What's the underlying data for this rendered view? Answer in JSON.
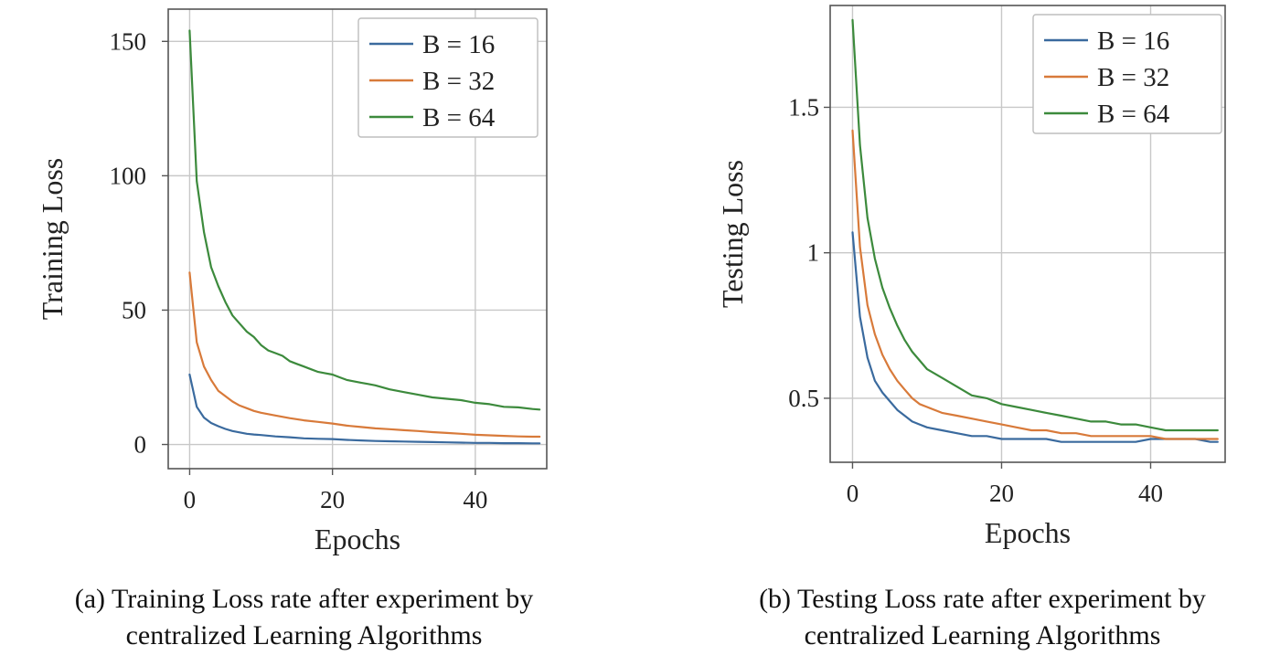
{
  "chart_data": [
    {
      "type": "line",
      "xlabel": "Epochs",
      "ylabel": "Training Loss",
      "xlim": [
        -3,
        50
      ],
      "ylim": [
        -9,
        162
      ],
      "xticks": [
        {
          "value": 0,
          "label": "0"
        },
        {
          "value": 20,
          "label": "20"
        },
        {
          "value": 40,
          "label": "40"
        }
      ],
      "yticks": [
        {
          "value": 0,
          "label": "0"
        },
        {
          "value": 50,
          "label": "50"
        },
        {
          "value": 100,
          "label": "100"
        },
        {
          "value": 150,
          "label": "150"
        }
      ],
      "grid": true,
      "legend_position": "top-right",
      "caption": [
        "(a) Training  Loss rate after experiment by",
        "centralized Learning Algorithms"
      ],
      "series": [
        {
          "name": "B = 16",
          "color": "#3a6a9e",
          "x": [
            0,
            1,
            2,
            3,
            4,
            5,
            6,
            7,
            8,
            9,
            10,
            12,
            14,
            16,
            18,
            20,
            22,
            24,
            26,
            28,
            30,
            32,
            34,
            36,
            38,
            40,
            42,
            44,
            46,
            48,
            49
          ],
          "values": [
            26,
            14,
            10,
            8,
            6.8,
            5.8,
            5,
            4.5,
            4,
            3.7,
            3.5,
            3,
            2.7,
            2.3,
            2.1,
            2,
            1.7,
            1.5,
            1.3,
            1.2,
            1.1,
            1,
            0.9,
            0.8,
            0.7,
            0.6,
            0.6,
            0.5,
            0.5,
            0.4,
            0.4
          ]
        },
        {
          "name": "B = 32",
          "color": "#d87a3a",
          "x": [
            0,
            1,
            2,
            3,
            4,
            5,
            6,
            7,
            8,
            9,
            10,
            12,
            14,
            16,
            18,
            20,
            22,
            24,
            26,
            28,
            30,
            32,
            34,
            36,
            38,
            40,
            42,
            44,
            46,
            48,
            49
          ],
          "values": [
            64,
            38,
            29,
            24,
            20,
            18,
            16,
            14.5,
            13.5,
            12.5,
            11.8,
            10.8,
            9.8,
            9,
            8.4,
            7.8,
            7,
            6.5,
            6,
            5.7,
            5.3,
            5,
            4.6,
            4.3,
            4,
            3.6,
            3.4,
            3.2,
            3,
            2.9,
            2.9
          ]
        },
        {
          "name": "B = 64",
          "color": "#3c8a3c",
          "x": [
            0,
            1,
            2,
            3,
            4,
            5,
            6,
            7,
            8,
            9,
            10,
            11,
            12,
            13,
            14,
            15,
            16,
            17,
            18,
            19,
            20,
            21,
            22,
            23,
            24,
            25,
            26,
            28,
            30,
            32,
            34,
            36,
            38,
            40,
            42,
            44,
            46,
            48,
            49
          ],
          "values": [
            154,
            98,
            79,
            66,
            59,
            53,
            48,
            45,
            42,
            40,
            37,
            35,
            34,
            33,
            31,
            30,
            29,
            28,
            27,
            26.5,
            26,
            25,
            24,
            23.5,
            23,
            22.5,
            22,
            20.5,
            19.5,
            18.5,
            17.5,
            17,
            16.5,
            15.5,
            15,
            14,
            13.8,
            13.2,
            13
          ]
        }
      ]
    },
    {
      "type": "line",
      "xlabel": "Epochs",
      "ylabel": "Testing Loss",
      "xlim": [
        -3,
        50
      ],
      "ylim": [
        0.28,
        1.85
      ],
      "xticks": [
        {
          "value": 0,
          "label": "0"
        },
        {
          "value": 20,
          "label": "20"
        },
        {
          "value": 40,
          "label": "40"
        }
      ],
      "yticks": [
        {
          "value": 0.5,
          "label": "0.5"
        },
        {
          "value": 1,
          "label": "1"
        },
        {
          "value": 1.5,
          "label": "1.5"
        }
      ],
      "grid": true,
      "legend_position": "top-right",
      "caption": [
        "(b) Testing  Loss rate after experiment by",
        "centralized Learning Algorithms"
      ],
      "series": [
        {
          "name": "B = 16",
          "color": "#3a6a9e",
          "x": [
            0,
            1,
            2,
            3,
            4,
            5,
            6,
            7,
            8,
            9,
            10,
            12,
            14,
            16,
            18,
            20,
            22,
            24,
            26,
            28,
            30,
            32,
            34,
            36,
            38,
            40,
            42,
            44,
            46,
            48,
            49
          ],
          "values": [
            1.07,
            0.78,
            0.64,
            0.56,
            0.52,
            0.49,
            0.46,
            0.44,
            0.42,
            0.41,
            0.4,
            0.39,
            0.38,
            0.37,
            0.37,
            0.36,
            0.36,
            0.36,
            0.36,
            0.35,
            0.35,
            0.35,
            0.35,
            0.35,
            0.35,
            0.36,
            0.36,
            0.36,
            0.36,
            0.35,
            0.35
          ]
        },
        {
          "name": "B = 32",
          "color": "#d87a3a",
          "x": [
            0,
            1,
            2,
            3,
            4,
            5,
            6,
            7,
            8,
            9,
            10,
            12,
            14,
            16,
            18,
            20,
            22,
            24,
            26,
            28,
            30,
            32,
            34,
            36,
            38,
            40,
            42,
            44,
            46,
            48,
            49
          ],
          "values": [
            1.42,
            1.02,
            0.82,
            0.72,
            0.65,
            0.6,
            0.56,
            0.53,
            0.5,
            0.48,
            0.47,
            0.45,
            0.44,
            0.43,
            0.42,
            0.41,
            0.4,
            0.39,
            0.39,
            0.38,
            0.38,
            0.37,
            0.37,
            0.37,
            0.37,
            0.37,
            0.36,
            0.36,
            0.36,
            0.36,
            0.36
          ]
        },
        {
          "name": "B = 64",
          "color": "#3c8a3c",
          "x": [
            0,
            1,
            2,
            3,
            4,
            5,
            6,
            7,
            8,
            9,
            10,
            12,
            14,
            16,
            18,
            20,
            22,
            24,
            26,
            28,
            30,
            32,
            34,
            36,
            38,
            40,
            42,
            44,
            46,
            48,
            49
          ],
          "values": [
            1.8,
            1.37,
            1.12,
            0.98,
            0.88,
            0.81,
            0.75,
            0.7,
            0.66,
            0.63,
            0.6,
            0.57,
            0.54,
            0.51,
            0.5,
            0.48,
            0.47,
            0.46,
            0.45,
            0.44,
            0.43,
            0.42,
            0.42,
            0.41,
            0.41,
            0.4,
            0.39,
            0.39,
            0.39,
            0.39,
            0.39
          ]
        }
      ]
    }
  ]
}
